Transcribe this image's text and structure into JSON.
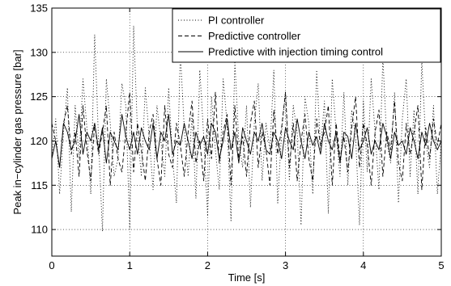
{
  "chart_data": {
    "type": "line",
    "title": "",
    "xlabel": "Time [s]",
    "ylabel": "Peak in−cylinder gas pressure [bar]",
    "xlim": [
      0,
      5
    ],
    "ylim": [
      107,
      135
    ],
    "xticks": [
      0,
      1,
      2,
      3,
      4,
      5
    ],
    "yticks": [
      110,
      115,
      120,
      125,
      130,
      135
    ],
    "grid": true,
    "legend_position": "top-right",
    "x": [
      0.0,
      0.05,
      0.1,
      0.15,
      0.2,
      0.25,
      0.3,
      0.35,
      0.4,
      0.45,
      0.5,
      0.55,
      0.6,
      0.65,
      0.7,
      0.75,
      0.8,
      0.85,
      0.9,
      0.95,
      1.0,
      1.05,
      1.1,
      1.15,
      1.2,
      1.25,
      1.3,
      1.35,
      1.4,
      1.45,
      1.5,
      1.55,
      1.6,
      1.65,
      1.7,
      1.75,
      1.8,
      1.85,
      1.9,
      1.95,
      2.0,
      2.05,
      2.1,
      2.15,
      2.2,
      2.25,
      2.3,
      2.35,
      2.4,
      2.45,
      2.5,
      2.55,
      2.6,
      2.65,
      2.7,
      2.75,
      2.8,
      2.85,
      2.9,
      2.95,
      3.0,
      3.05,
      3.1,
      3.15,
      3.2,
      3.25,
      3.3,
      3.35,
      3.4,
      3.45,
      3.5,
      3.55,
      3.6,
      3.65,
      3.7,
      3.75,
      3.8,
      3.85,
      3.9,
      3.95,
      4.0,
      4.05,
      4.1,
      4.15,
      4.2,
      4.25,
      4.3,
      4.35,
      4.4,
      4.45,
      4.5,
      4.55,
      4.6,
      4.65,
      4.7,
      4.75,
      4.8,
      4.85,
      4.9,
      4.95,
      5.0
    ],
    "series": [
      {
        "name": "PI controller",
        "style": "dotted",
        "values": [
          118,
          122.5,
          114,
          121,
          126,
          112,
          124,
          118,
          127,
          121.5,
          114,
          132,
          120,
          109.8,
          127,
          122,
          116,
          118,
          126.5,
          124,
          110,
          133,
          121,
          116,
          126,
          120.5,
          114.5,
          124,
          120,
          116,
          126,
          118,
          113,
          130,
          121.5,
          116,
          123,
          113.5,
          128,
          120.5,
          111.5,
          125,
          119,
          114.5,
          127,
          122,
          111,
          129,
          120,
          117,
          124,
          112.5,
          122,
          126.5,
          115.5,
          122,
          119,
          128,
          113,
          121,
          125.5,
          115.5,
          124,
          121,
          110.5,
          125,
          122,
          114,
          128,
          119,
          124.5,
          111.8,
          127,
          121,
          116,
          125.5,
          115,
          123.5,
          120.5,
          110.5,
          124.5,
          116.5,
          127,
          121,
          114.5,
          129.5,
          120,
          117.5,
          125.5,
          113,
          122.5,
          127,
          116,
          123.5,
          114,
          129,
          120,
          117,
          124,
          114,
          120
        ]
      },
      {
        "name": "Predictive controller",
        "style": "dashed",
        "values": [
          122,
          120,
          117,
          122,
          124,
          118.5,
          121,
          116,
          124,
          119,
          115.5,
          122,
          118.5,
          121,
          124,
          115,
          121,
          118,
          116.5,
          121,
          125.5,
          116.5,
          122,
          119,
          115.5,
          121,
          123,
          118,
          115,
          124,
          118.5,
          117,
          122,
          119.5,
          116,
          121,
          124.5,
          117.5,
          120,
          115.5,
          122.5,
          118,
          125.5,
          117.5,
          121,
          123,
          115,
          124,
          118,
          120.5,
          116,
          122,
          124.5,
          117,
          121,
          119,
          115,
          123.5,
          118.5,
          121.5,
          125.5,
          117,
          122,
          115.5,
          120,
          123,
          118,
          115.5,
          122.5,
          119.5,
          121,
          124,
          115,
          122,
          118,
          120.5,
          116.5,
          121.5,
          125,
          117,
          122,
          119.5,
          115,
          121,
          123.5,
          116,
          121,
          119,
          124.5,
          117.5,
          115.5,
          122,
          118.5,
          121,
          124,
          114.5,
          121.5,
          118,
          122.5,
          119.5,
          122
        ]
      },
      {
        "name": "Predictive with injection timing control",
        "style": "solid",
        "values": [
          118,
          120,
          117,
          122,
          121,
          119,
          120,
          123,
          118.5,
          121,
          120,
          122,
          119,
          121.5,
          117.5,
          121,
          120,
          119,
          123,
          120.5,
          119,
          121,
          118.5,
          121.5,
          120,
          119,
          122,
          118,
          121,
          120,
          123,
          118.5,
          120,
          119.5,
          122,
          120,
          118,
          121,
          119.5,
          120.5,
          118.5,
          122,
          121,
          118,
          120,
          122.5,
          119,
          121,
          117.5,
          121.5,
          120,
          118.5,
          121,
          120,
          122,
          119,
          118.5,
          121,
          120,
          118,
          121.5,
          120,
          119,
          122.5,
          120,
          118,
          121,
          119.5,
          120.5,
          118.5,
          122,
          120,
          119,
          121,
          117.5,
          121,
          120.5,
          118,
          122,
          119,
          120,
          121.5,
          118.5,
          120,
          119,
          122,
          120.5,
          118,
          121,
          119.5,
          120,
          118.5,
          121.5,
          120,
          118,
          121,
          119.5,
          122,
          120,
          119,
          120
        ]
      }
    ]
  }
}
